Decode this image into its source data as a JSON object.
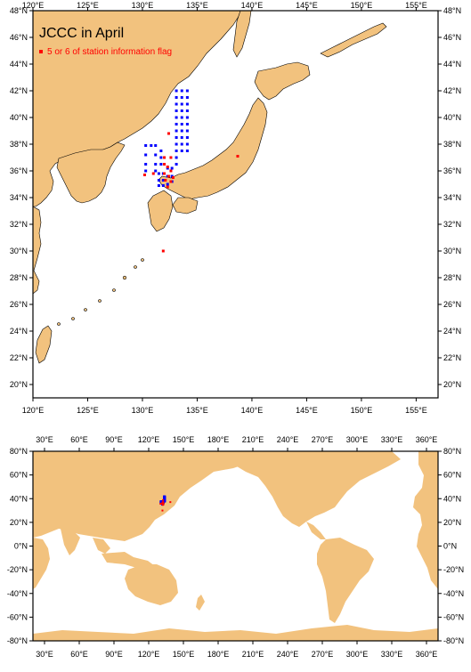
{
  "top_map": {
    "title": "JCCC in April",
    "legend_label": "5 or 6 of station information flag",
    "lon_labels": [
      "120°E",
      "125°E",
      "130°E",
      "135°E",
      "140°E",
      "145°E",
      "150°E",
      "155°E"
    ],
    "lat_labels": [
      "20°N",
      "22°N",
      "24°N",
      "26°N",
      "28°N",
      "30°N",
      "32°N",
      "34°N",
      "36°N",
      "38°N",
      "40°N",
      "42°N",
      "44°N",
      "46°N",
      "48°N"
    ],
    "lon_range": [
      120,
      157
    ],
    "lat_range": [
      19,
      48
    ],
    "colors": {
      "land": "#f2c27e",
      "station": "#0000ff",
      "flagged": "#ff0000"
    }
  },
  "bottom_map": {
    "lon_labels": [
      "30°E",
      "60°E",
      "90°E",
      "120°E",
      "150°E",
      "180°E",
      "210°E",
      "240°E",
      "270°E",
      "300°E",
      "330°E",
      "360°E"
    ],
    "lat_labels": [
      "-80°N",
      "-60°N",
      "-40°N",
      "-20°N",
      "0°N",
      "20°N",
      "40°N",
      "60°N",
      "80°N"
    ],
    "lon_range": [
      20,
      370
    ],
    "lat_range": [
      -80,
      80
    ]
  },
  "chart_data": {
    "type": "scatter",
    "series": [
      {
        "name": "",
        "color": "#0000ff",
        "points": [
          [
            133.1,
            42.0
          ],
          [
            133.1,
            41.5
          ],
          [
            133.1,
            41.0
          ],
          [
            133.1,
            40.5
          ],
          [
            133.1,
            40.0
          ],
          [
            133.1,
            39.5
          ],
          [
            133.1,
            39.0
          ],
          [
            133.1,
            38.5
          ],
          [
            133.1,
            38.0
          ],
          [
            133.1,
            37.5
          ],
          [
            133.1,
            37.0
          ],
          [
            133.1,
            36.5
          ],
          [
            133.6,
            42.0
          ],
          [
            133.6,
            41.5
          ],
          [
            133.6,
            41.0
          ],
          [
            133.6,
            40.5
          ],
          [
            133.6,
            40.0
          ],
          [
            133.6,
            39.5
          ],
          [
            133.6,
            39.0
          ],
          [
            133.6,
            38.5
          ],
          [
            133.6,
            38.0
          ],
          [
            133.6,
            37.5
          ],
          [
            134.1,
            42.0
          ],
          [
            134.1,
            41.5
          ],
          [
            134.1,
            41.0
          ],
          [
            134.1,
            40.5
          ],
          [
            134.1,
            40.0
          ],
          [
            134.1,
            39.5
          ],
          [
            134.1,
            39.0
          ],
          [
            134.1,
            38.5
          ],
          [
            134.1,
            38.0
          ],
          [
            134.1,
            37.5
          ],
          [
            130.3,
            37.9
          ],
          [
            130.8,
            37.9
          ],
          [
            131.2,
            37.9
          ],
          [
            130.3,
            37.2
          ],
          [
            131.2,
            37.2
          ],
          [
            130.3,
            36.5
          ],
          [
            131.2,
            36.5
          ],
          [
            130.3,
            36.0
          ],
          [
            131.2,
            36.0
          ],
          [
            131.5,
            35.8
          ],
          [
            131.5,
            35.3
          ],
          [
            131.5,
            34.9
          ],
          [
            131.9,
            35.8
          ],
          [
            131.9,
            35.3
          ],
          [
            131.9,
            34.9
          ],
          [
            132.3,
            36.2
          ],
          [
            132.3,
            35.6
          ],
          [
            132.3,
            35.0
          ],
          [
            132.7,
            36.2
          ],
          [
            132.7,
            35.6
          ],
          [
            132.7,
            35.2
          ],
          [
            131.7,
            37.5
          ],
          [
            131.7,
            37.0
          ],
          [
            131.7,
            36.5
          ]
        ]
      },
      {
        "name": "5 or 6 of station information flag",
        "color": "#ff0000",
        "points": [
          [
            132.4,
            38.8
          ],
          [
            132.0,
            37.0
          ],
          [
            132.6,
            37.0
          ],
          [
            132.0,
            36.5
          ],
          [
            132.3,
            36.3
          ],
          [
            132.6,
            36.0
          ],
          [
            132.0,
            35.8
          ],
          [
            132.4,
            35.6
          ],
          [
            132.8,
            35.5
          ],
          [
            132.1,
            35.3
          ],
          [
            132.6,
            35.2
          ],
          [
            132.3,
            34.8
          ],
          [
            130.2,
            35.7
          ],
          [
            131.9,
            30.0
          ],
          [
            131.0,
            35.8
          ],
          [
            138.7,
            37.1
          ]
        ]
      }
    ]
  }
}
